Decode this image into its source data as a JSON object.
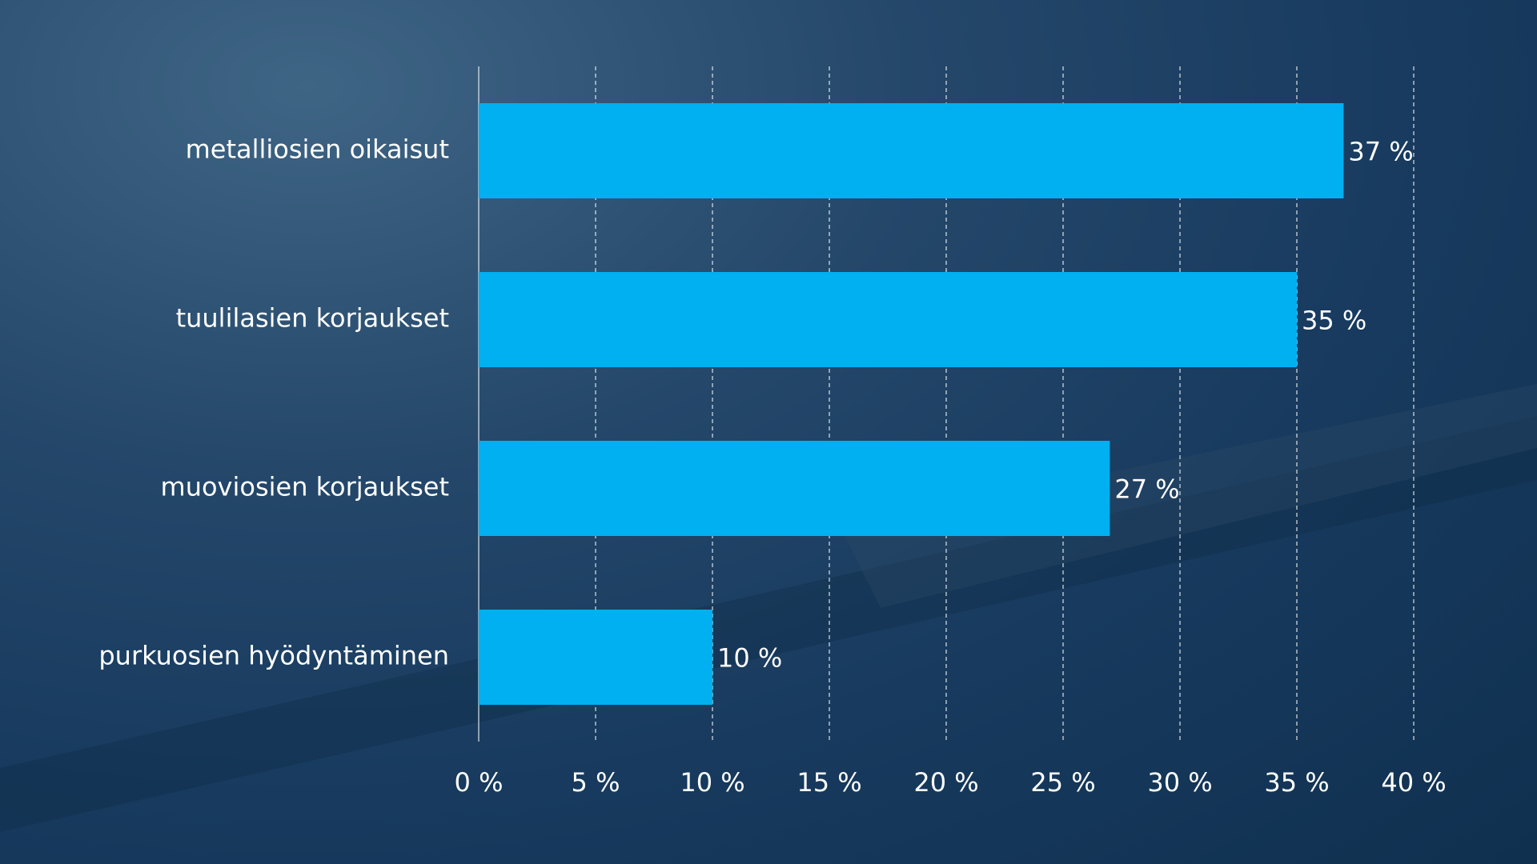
{
  "chart_data": {
    "type": "bar",
    "orientation": "horizontal",
    "categories": [
      "metalliosien oikaisut",
      "tuulilasien korjaukset",
      "muoviosien korjaukset",
      "purkuosien hyödyntäminen"
    ],
    "values": [
      37,
      35,
      27,
      10
    ],
    "value_labels": [
      "37 %",
      "35 %",
      "27 %",
      "10 %"
    ],
    "color": "#00b0f0",
    "xlim": [
      0,
      40
    ],
    "xticks": [
      {
        "value": 0,
        "label": "0 %"
      },
      {
        "value": 5,
        "label": "5 %"
      },
      {
        "value": 10,
        "label": "10 %"
      },
      {
        "value": 15,
        "label": "15 %"
      },
      {
        "value": 20,
        "label": "20 %"
      },
      {
        "value": 25,
        "label": "25 %"
      },
      {
        "value": 30,
        "label": "30 %"
      },
      {
        "value": 35,
        "label": "35 %"
      },
      {
        "value": 40,
        "label": "40 %"
      }
    ],
    "grid": true
  }
}
